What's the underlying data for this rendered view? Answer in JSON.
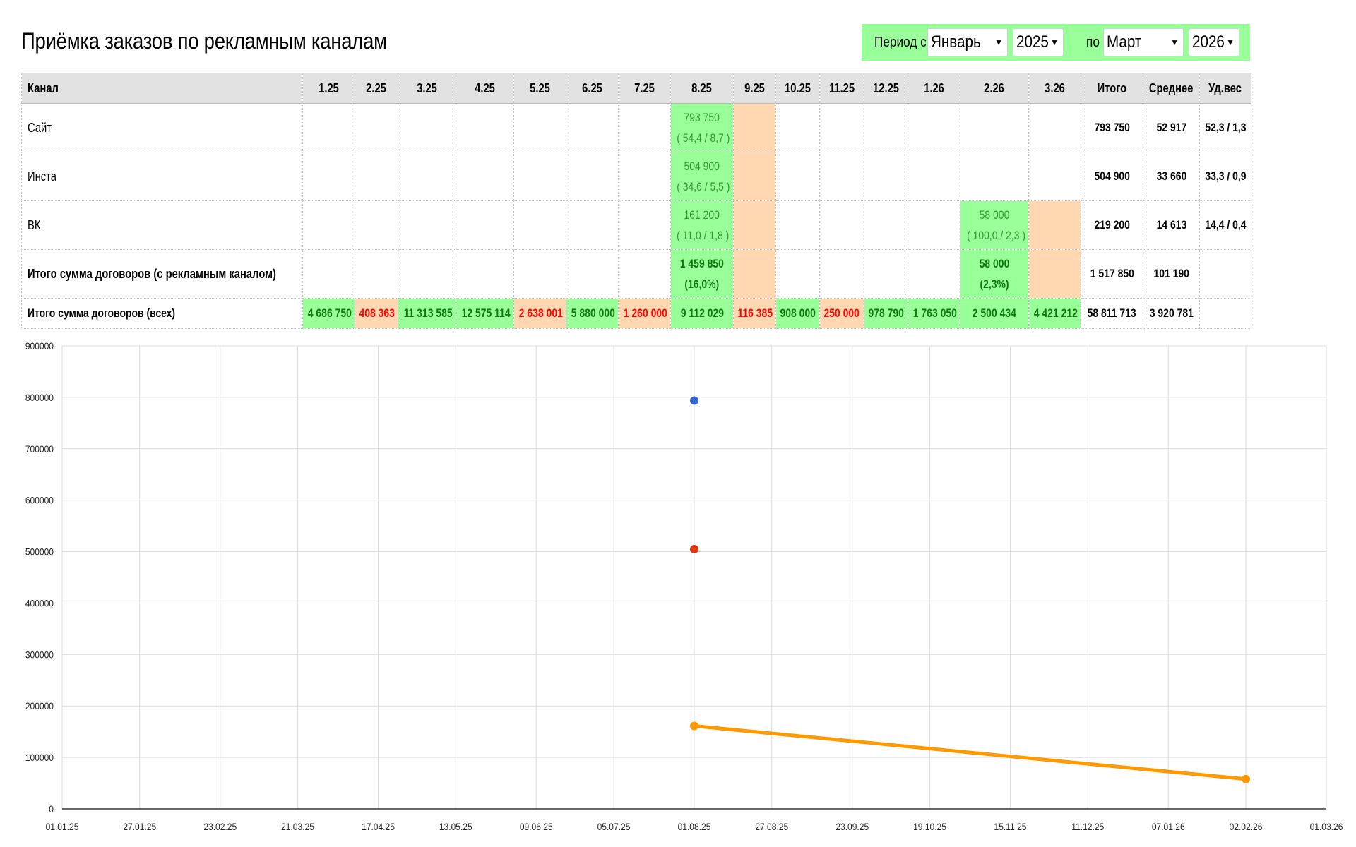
{
  "title": "Приёмка заказов по рекламным каналам",
  "period": {
    "from_label": "Период с",
    "from_month": "Январь",
    "from_year": "2025",
    "to_label": "по",
    "to_month": "Март",
    "to_year": "2026",
    "arrow": "▼"
  },
  "table": {
    "channel_header": "Канал",
    "months": [
      "1.25",
      "2.25",
      "3.25",
      "4.25",
      "5.25",
      "6.25",
      "7.25",
      "8.25",
      "9.25",
      "10.25",
      "11.25",
      "12.25",
      "1.26",
      "2.26",
      "3.26"
    ],
    "total_header": "Итого",
    "avg_header": "Среднее",
    "share_header": "Уд.вес",
    "rows": [
      {
        "name": "Сайт",
        "cells": {
          "7": {
            "v": "793 750",
            "s": "( 54,4 / 8,7 )"
          },
          "8": {
            "empty": true
          }
        },
        "total": "793 750",
        "avg": "52 917",
        "share": "52,3 / 1,3"
      },
      {
        "name": "Инста",
        "cells": {
          "7": {
            "v": "504 900",
            "s": "( 34,6 / 5,5 )"
          },
          "8": {
            "empty": true
          }
        },
        "total": "504 900",
        "avg": "33 660",
        "share": "33,3 / 0,9"
      },
      {
        "name": "ВК",
        "cells": {
          "7": {
            "v": "161 200",
            "s": "( 11,0 / 1,8 )"
          },
          "8": {
            "empty": true
          },
          "13": {
            "v": "58 000",
            "s": "( 100,0 / 2,3 )"
          },
          "14": {
            "empty": true
          }
        },
        "total": "219 200",
        "avg": "14 613",
        "share": "14,4 / 0,4"
      }
    ],
    "total_ad": {
      "name": "Итого сумма договоров (с рекламным каналом)",
      "cells": {
        "7": {
          "v": "1 459 850",
          "s": "(16,0%)"
        },
        "8": {
          "empty": true
        },
        "13": {
          "v": "58 000",
          "s": "(2,3%)"
        },
        "14": {
          "empty": true
        }
      },
      "total": "1 517 850",
      "avg": "101 190",
      "share": ""
    },
    "total_all": {
      "name": "Итого сумма договоров (всех)",
      "values": [
        "4 686 750",
        "408 363",
        "11 313 585",
        "12 575 114",
        "2 638 001",
        "5 880 000",
        "1 260 000",
        "9 112 029",
        "116 385",
        "908 000",
        "250 000",
        "978 790",
        "1 763 050",
        "2 500 434",
        "4 421 212"
      ],
      "status": [
        "good",
        "bad",
        "good",
        "good",
        "bad",
        "good",
        "bad",
        "good",
        "bad",
        "good",
        "bad",
        "good",
        "good",
        "good",
        "good"
      ],
      "total": "58 811 713",
      "avg": "3 920 781",
      "share": ""
    }
  },
  "chart_data": {
    "type": "line",
    "title": "",
    "xlabel": "",
    "ylabel": "",
    "x_ticks": [
      "01.01.25",
      "27.01.25",
      "23.02.25",
      "21.03.25",
      "17.04.25",
      "13.05.25",
      "09.06.25",
      "05.07.25",
      "01.08.25",
      "27.08.25",
      "23.09.25",
      "19.10.25",
      "15.11.25",
      "11.12.25",
      "07.01.26",
      "02.02.26",
      "01.03.26"
    ],
    "y_ticks": [
      "0",
      "100000",
      "200000",
      "300000",
      "400000",
      "500000",
      "600000",
      "700000",
      "800000",
      "900000"
    ],
    "ylim": [
      0,
      900000
    ],
    "grid": true,
    "legend": "none",
    "series": [
      {
        "color": "#3366cc",
        "points": [
          {
            "x": "01.08.25",
            "y": 793750
          }
        ]
      },
      {
        "color": "#dc3912",
        "points": [
          {
            "x": "01.08.25",
            "y": 504900
          }
        ]
      },
      {
        "color": "#ff9900",
        "points": [
          {
            "x": "01.08.25",
            "y": 161200
          },
          {
            "x": "02.02.26",
            "y": 58000
          }
        ]
      }
    ]
  }
}
